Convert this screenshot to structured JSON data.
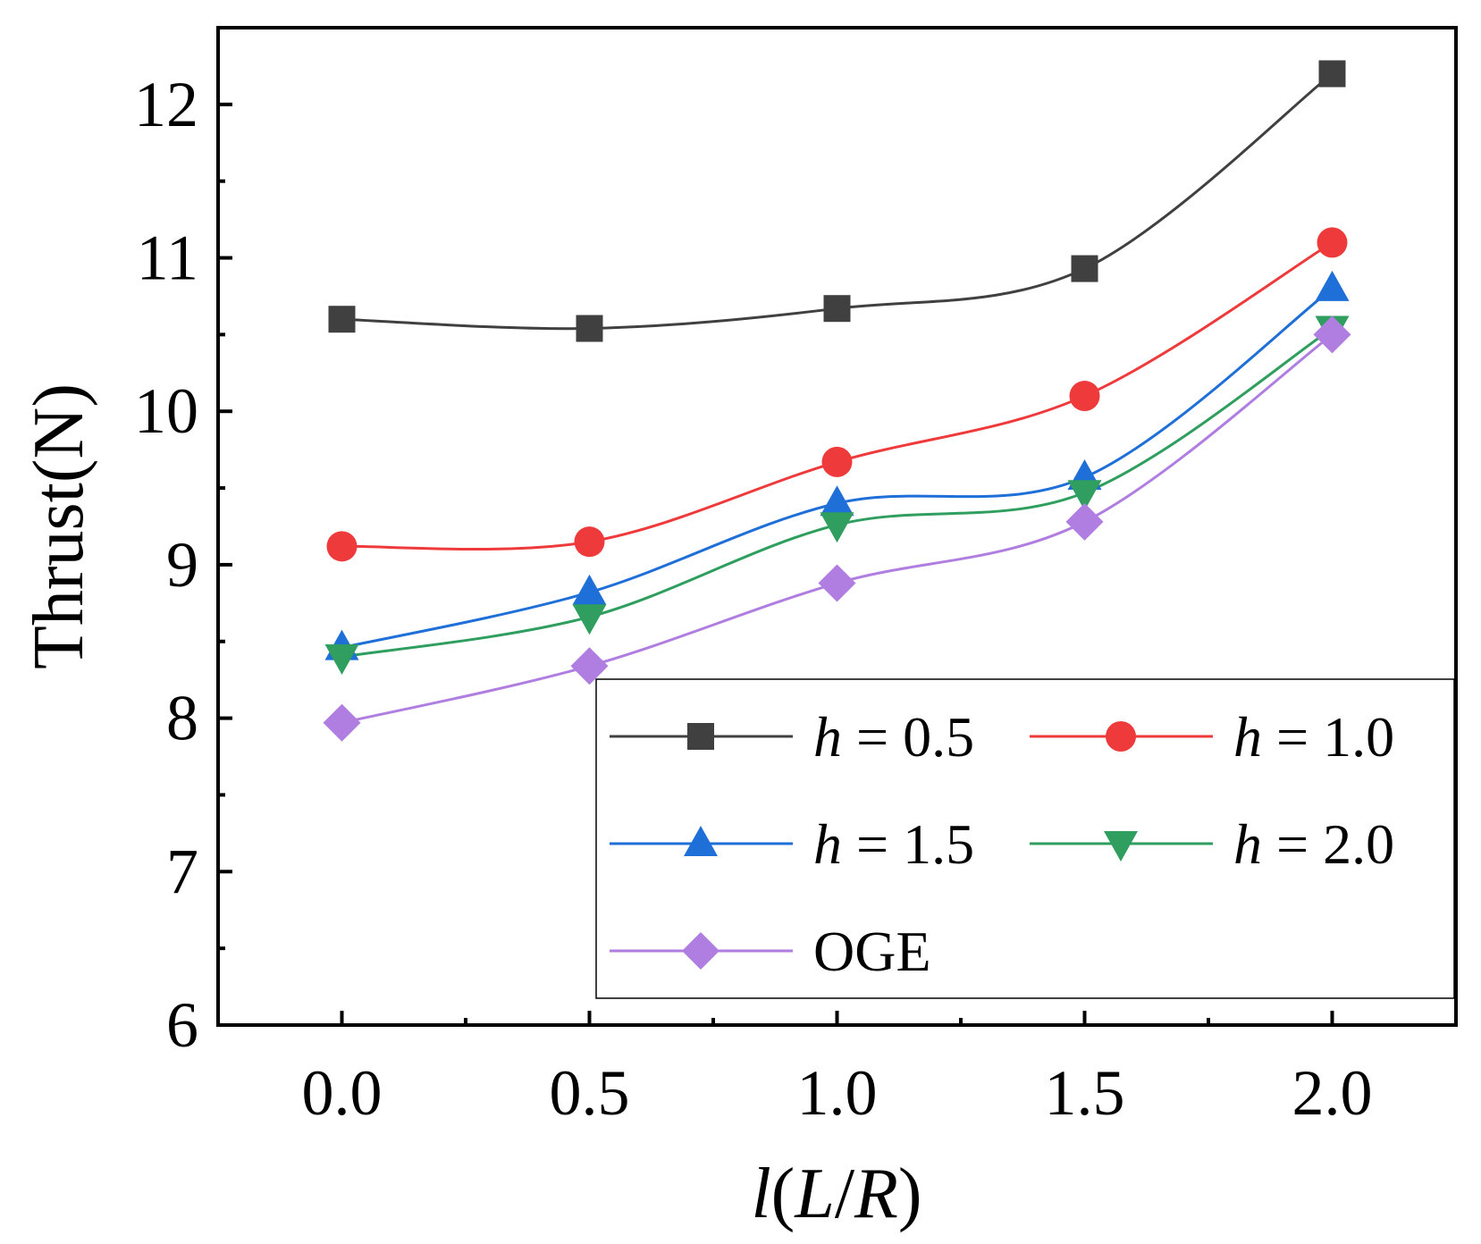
{
  "chart_data": {
    "type": "line",
    "title": "",
    "xlabel": "l(L/R)",
    "xlabel_parts": {
      "italic_l": "l",
      "open": "(",
      "italic_L": "L",
      "slash": "/",
      "italic_R": "R",
      "close": ")"
    },
    "ylabel": "Thrust(N)",
    "x": [
      0.0,
      0.5,
      1.0,
      1.5,
      2.0
    ],
    "xlim": [
      -0.25,
      2.25
    ],
    "ylim": [
      6,
      12.5
    ],
    "xticks": [
      "0.0",
      "0.5",
      "1.0",
      "1.5",
      "2.0"
    ],
    "yticks": [
      "6",
      "7",
      "8",
      "9",
      "10",
      "11",
      "12"
    ],
    "grid": false,
    "legend_position": "bottom-right",
    "series": [
      {
        "name": "h = 0.5",
        "var": "h",
        "eq": "= 0.5",
        "marker": "square",
        "color": "#404040",
        "values": [
          10.6,
          10.54,
          10.67,
          10.93,
          12.2
        ]
      },
      {
        "name": "h = 1.0",
        "var": "h",
        "eq": "= 1.0",
        "marker": "circle",
        "color": "#ee3a3a",
        "values": [
          9.12,
          9.15,
          9.67,
          10.1,
          11.1
        ]
      },
      {
        "name": "h = 1.5",
        "var": "h",
        "eq": "= 1.5",
        "marker": "triangle-up",
        "color": "#1f6fd8",
        "values": [
          8.46,
          8.82,
          9.4,
          9.57,
          10.8
        ]
      },
      {
        "name": "h = 2.0",
        "var": "h",
        "eq": "= 2.0",
        "marker": "triangle-down",
        "color": "#2f9e5e",
        "values": [
          8.4,
          8.66,
          9.26,
          9.47,
          10.54
        ]
      },
      {
        "name": "OGE",
        "var": "",
        "eq": "OGE",
        "marker": "diamond",
        "color": "#b07ee0",
        "values": [
          7.97,
          8.34,
          8.88,
          9.28,
          10.5
        ]
      }
    ]
  }
}
